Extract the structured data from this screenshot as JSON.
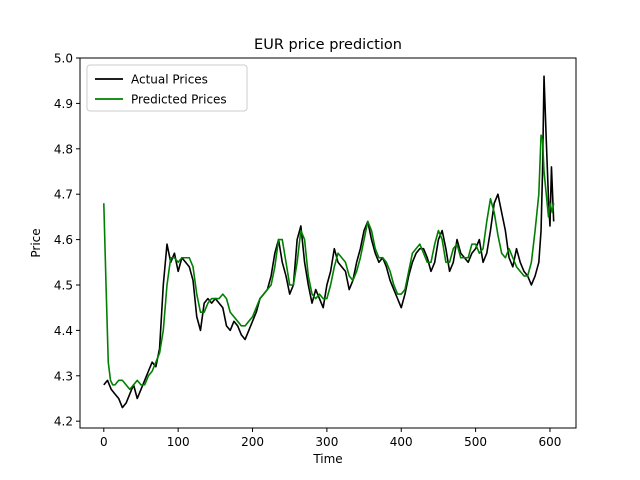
{
  "chart_data": {
    "type": "line",
    "title": "EUR price prediction",
    "xlabel": "Time",
    "ylabel": "Price",
    "xlim": [
      -32,
      635
    ],
    "ylim": [
      4.185,
      5.0
    ],
    "x_ticks": [
      0,
      100,
      200,
      300,
      400,
      500,
      600
    ],
    "y_ticks": [
      4.2,
      4.3,
      4.4,
      4.5,
      4.6,
      4.7,
      4.8,
      4.9,
      5.0
    ],
    "x_tick_labels": [
      "0",
      "100",
      "200",
      "300",
      "400",
      "500",
      "600"
    ],
    "y_tick_labels": [
      "4.2",
      "4.3",
      "4.4",
      "4.5",
      "4.6",
      "4.7",
      "4.8",
      "4.9",
      "5.0"
    ],
    "grid": false,
    "legend_position": "top-left",
    "series": [
      {
        "name": "Actual Prices",
        "color": "#000000",
        "x": [
          0,
          5,
          10,
          15,
          20,
          25,
          30,
          35,
          40,
          45,
          50,
          55,
          60,
          65,
          70,
          75,
          80,
          85,
          90,
          95,
          100,
          105,
          110,
          115,
          120,
          125,
          130,
          135,
          140,
          145,
          150,
          155,
          160,
          165,
          170,
          175,
          180,
          185,
          190,
          195,
          200,
          205,
          210,
          215,
          220,
          225,
          230,
          235,
          240,
          245,
          250,
          255,
          260,
          265,
          270,
          275,
          280,
          285,
          290,
          295,
          300,
          305,
          310,
          315,
          320,
          325,
          330,
          335,
          340,
          345,
          350,
          355,
          360,
          365,
          370,
          375,
          380,
          385,
          390,
          395,
          400,
          405,
          410,
          415,
          420,
          425,
          430,
          435,
          440,
          445,
          450,
          455,
          460,
          465,
          470,
          475,
          480,
          485,
          490,
          495,
          500,
          505,
          510,
          515,
          520,
          525,
          530,
          535,
          540,
          545,
          550,
          555,
          560,
          565,
          570,
          575,
          580,
          585,
          588,
          590,
          592,
          595,
          598,
          600,
          602,
          605
        ],
        "y": [
          4.28,
          4.29,
          4.27,
          4.26,
          4.25,
          4.23,
          4.24,
          4.26,
          4.28,
          4.25,
          4.27,
          4.29,
          4.31,
          4.33,
          4.32,
          4.36,
          4.5,
          4.59,
          4.55,
          4.57,
          4.53,
          4.56,
          4.55,
          4.54,
          4.51,
          4.43,
          4.4,
          4.46,
          4.47,
          4.46,
          4.47,
          4.46,
          4.45,
          4.41,
          4.4,
          4.42,
          4.41,
          4.39,
          4.38,
          4.4,
          4.42,
          4.44,
          4.47,
          4.48,
          4.49,
          4.52,
          4.57,
          4.6,
          4.55,
          4.52,
          4.48,
          4.5,
          4.6,
          4.63,
          4.55,
          4.5,
          4.46,
          4.49,
          4.47,
          4.45,
          4.5,
          4.53,
          4.58,
          4.55,
          4.54,
          4.53,
          4.49,
          4.51,
          4.55,
          4.58,
          4.62,
          4.64,
          4.6,
          4.57,
          4.55,
          4.56,
          4.54,
          4.51,
          4.49,
          4.47,
          4.45,
          4.48,
          4.52,
          4.55,
          4.57,
          4.58,
          4.58,
          4.56,
          4.53,
          4.55,
          4.6,
          4.62,
          4.58,
          4.53,
          4.55,
          4.6,
          4.57,
          4.56,
          4.55,
          4.57,
          4.58,
          4.6,
          4.55,
          4.57,
          4.62,
          4.68,
          4.7,
          4.66,
          4.62,
          4.56,
          4.54,
          4.58,
          4.55,
          4.53,
          4.52,
          4.5,
          4.52,
          4.55,
          4.62,
          4.75,
          4.96,
          4.82,
          4.69,
          4.63,
          4.76,
          4.64
        ]
      },
      {
        "name": "Predicted Prices",
        "color": "#008000",
        "x": [
          0,
          3,
          6,
          9,
          12,
          15,
          20,
          25,
          30,
          35,
          40,
          45,
          50,
          55,
          60,
          65,
          70,
          75,
          80,
          85,
          90,
          95,
          100,
          105,
          110,
          115,
          120,
          125,
          130,
          135,
          140,
          145,
          150,
          155,
          160,
          165,
          170,
          175,
          180,
          185,
          190,
          195,
          200,
          205,
          210,
          215,
          220,
          225,
          230,
          235,
          240,
          245,
          250,
          255,
          260,
          265,
          270,
          275,
          280,
          285,
          290,
          295,
          300,
          305,
          310,
          315,
          320,
          325,
          330,
          335,
          340,
          345,
          350,
          355,
          360,
          365,
          370,
          375,
          380,
          385,
          390,
          395,
          400,
          405,
          410,
          415,
          420,
          425,
          430,
          435,
          440,
          445,
          450,
          455,
          460,
          465,
          470,
          475,
          480,
          485,
          490,
          495,
          500,
          505,
          510,
          515,
          520,
          525,
          530,
          535,
          540,
          545,
          550,
          555,
          560,
          565,
          570,
          575,
          580,
          585,
          588,
          590,
          592,
          595,
          598,
          600,
          603,
          605
        ],
        "y": [
          4.68,
          4.5,
          4.33,
          4.29,
          4.28,
          4.28,
          4.29,
          4.29,
          4.28,
          4.27,
          4.28,
          4.29,
          4.28,
          4.28,
          4.3,
          4.31,
          4.33,
          4.35,
          4.4,
          4.5,
          4.56,
          4.56,
          4.55,
          4.56,
          4.56,
          4.56,
          4.54,
          4.48,
          4.44,
          4.44,
          4.46,
          4.47,
          4.47,
          4.47,
          4.48,
          4.47,
          4.44,
          4.43,
          4.42,
          4.41,
          4.41,
          4.42,
          4.43,
          4.45,
          4.47,
          4.48,
          4.49,
          4.5,
          4.54,
          4.6,
          4.6,
          4.55,
          4.5,
          4.5,
          4.55,
          4.62,
          4.6,
          4.52,
          4.48,
          4.47,
          4.48,
          4.47,
          4.47,
          4.5,
          4.54,
          4.57,
          4.56,
          4.55,
          4.52,
          4.51,
          4.53,
          4.56,
          4.6,
          4.64,
          4.62,
          4.58,
          4.56,
          4.56,
          4.55,
          4.53,
          4.5,
          4.48,
          4.48,
          4.49,
          4.53,
          4.57,
          4.58,
          4.59,
          4.57,
          4.55,
          4.55,
          4.59,
          4.62,
          4.6,
          4.55,
          4.55,
          4.58,
          4.59,
          4.56,
          4.56,
          4.56,
          4.59,
          4.59,
          4.57,
          4.58,
          4.64,
          4.69,
          4.66,
          4.61,
          4.57,
          4.56,
          4.58,
          4.56,
          4.54,
          4.53,
          4.52,
          4.52,
          4.55,
          4.62,
          4.7,
          4.83,
          4.82,
          4.75,
          4.7,
          4.65,
          4.68,
          4.66,
          4.68
        ]
      }
    ]
  }
}
